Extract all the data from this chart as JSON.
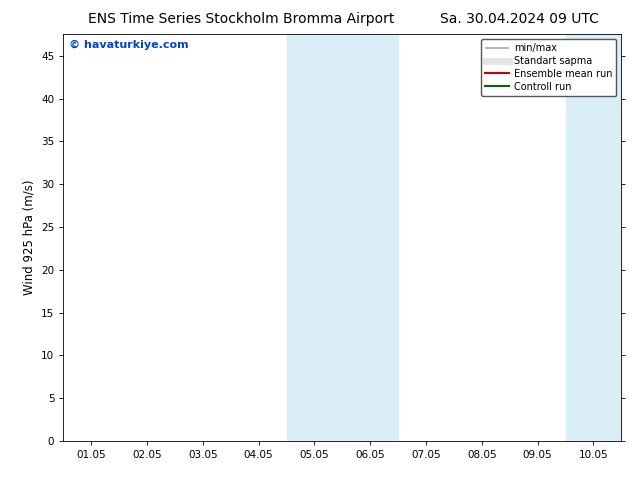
{
  "title_left": "ENS Time Series Stockholm Bromma Airport",
  "title_right": "Sa. 30.04.2024 09 UTC",
  "ylabel": "Wind 925 hPa (m/s)",
  "watermark": "© havaturkiye.com",
  "ylim": [
    0,
    47.5
  ],
  "yticks": [
    0,
    5,
    10,
    15,
    20,
    25,
    30,
    35,
    40,
    45
  ],
  "xtick_labels": [
    "01.05",
    "02.05",
    "03.05",
    "04.05",
    "05.05",
    "06.05",
    "07.05",
    "08.05",
    "09.05",
    "10.05"
  ],
  "xtick_positions": [
    0,
    1,
    2,
    3,
    4,
    5,
    6,
    7,
    8,
    9
  ],
  "shaded_regions": [
    {
      "xmin": 3.5,
      "xmax": 4.5,
      "color": "#daeef8"
    },
    {
      "xmin": 4.5,
      "xmax": 5.5,
      "color": "#daeef8"
    },
    {
      "xmin": 8.5,
      "xmax": 9.5,
      "color": "#daeef8"
    }
  ],
  "legend_labels": [
    "min/max",
    "Standart sapma",
    "Ensemble mean run",
    "Controll run"
  ],
  "legend_colors_line": [
    "#aaaaaa",
    "#cccccc",
    "#cc0000",
    "#006600"
  ],
  "bg_color": "#ffffff",
  "title_fontsize": 10,
  "tick_fontsize": 7.5,
  "ylabel_fontsize": 8.5,
  "watermark_color": "#0044cc",
  "watermark_fontsize": 8
}
